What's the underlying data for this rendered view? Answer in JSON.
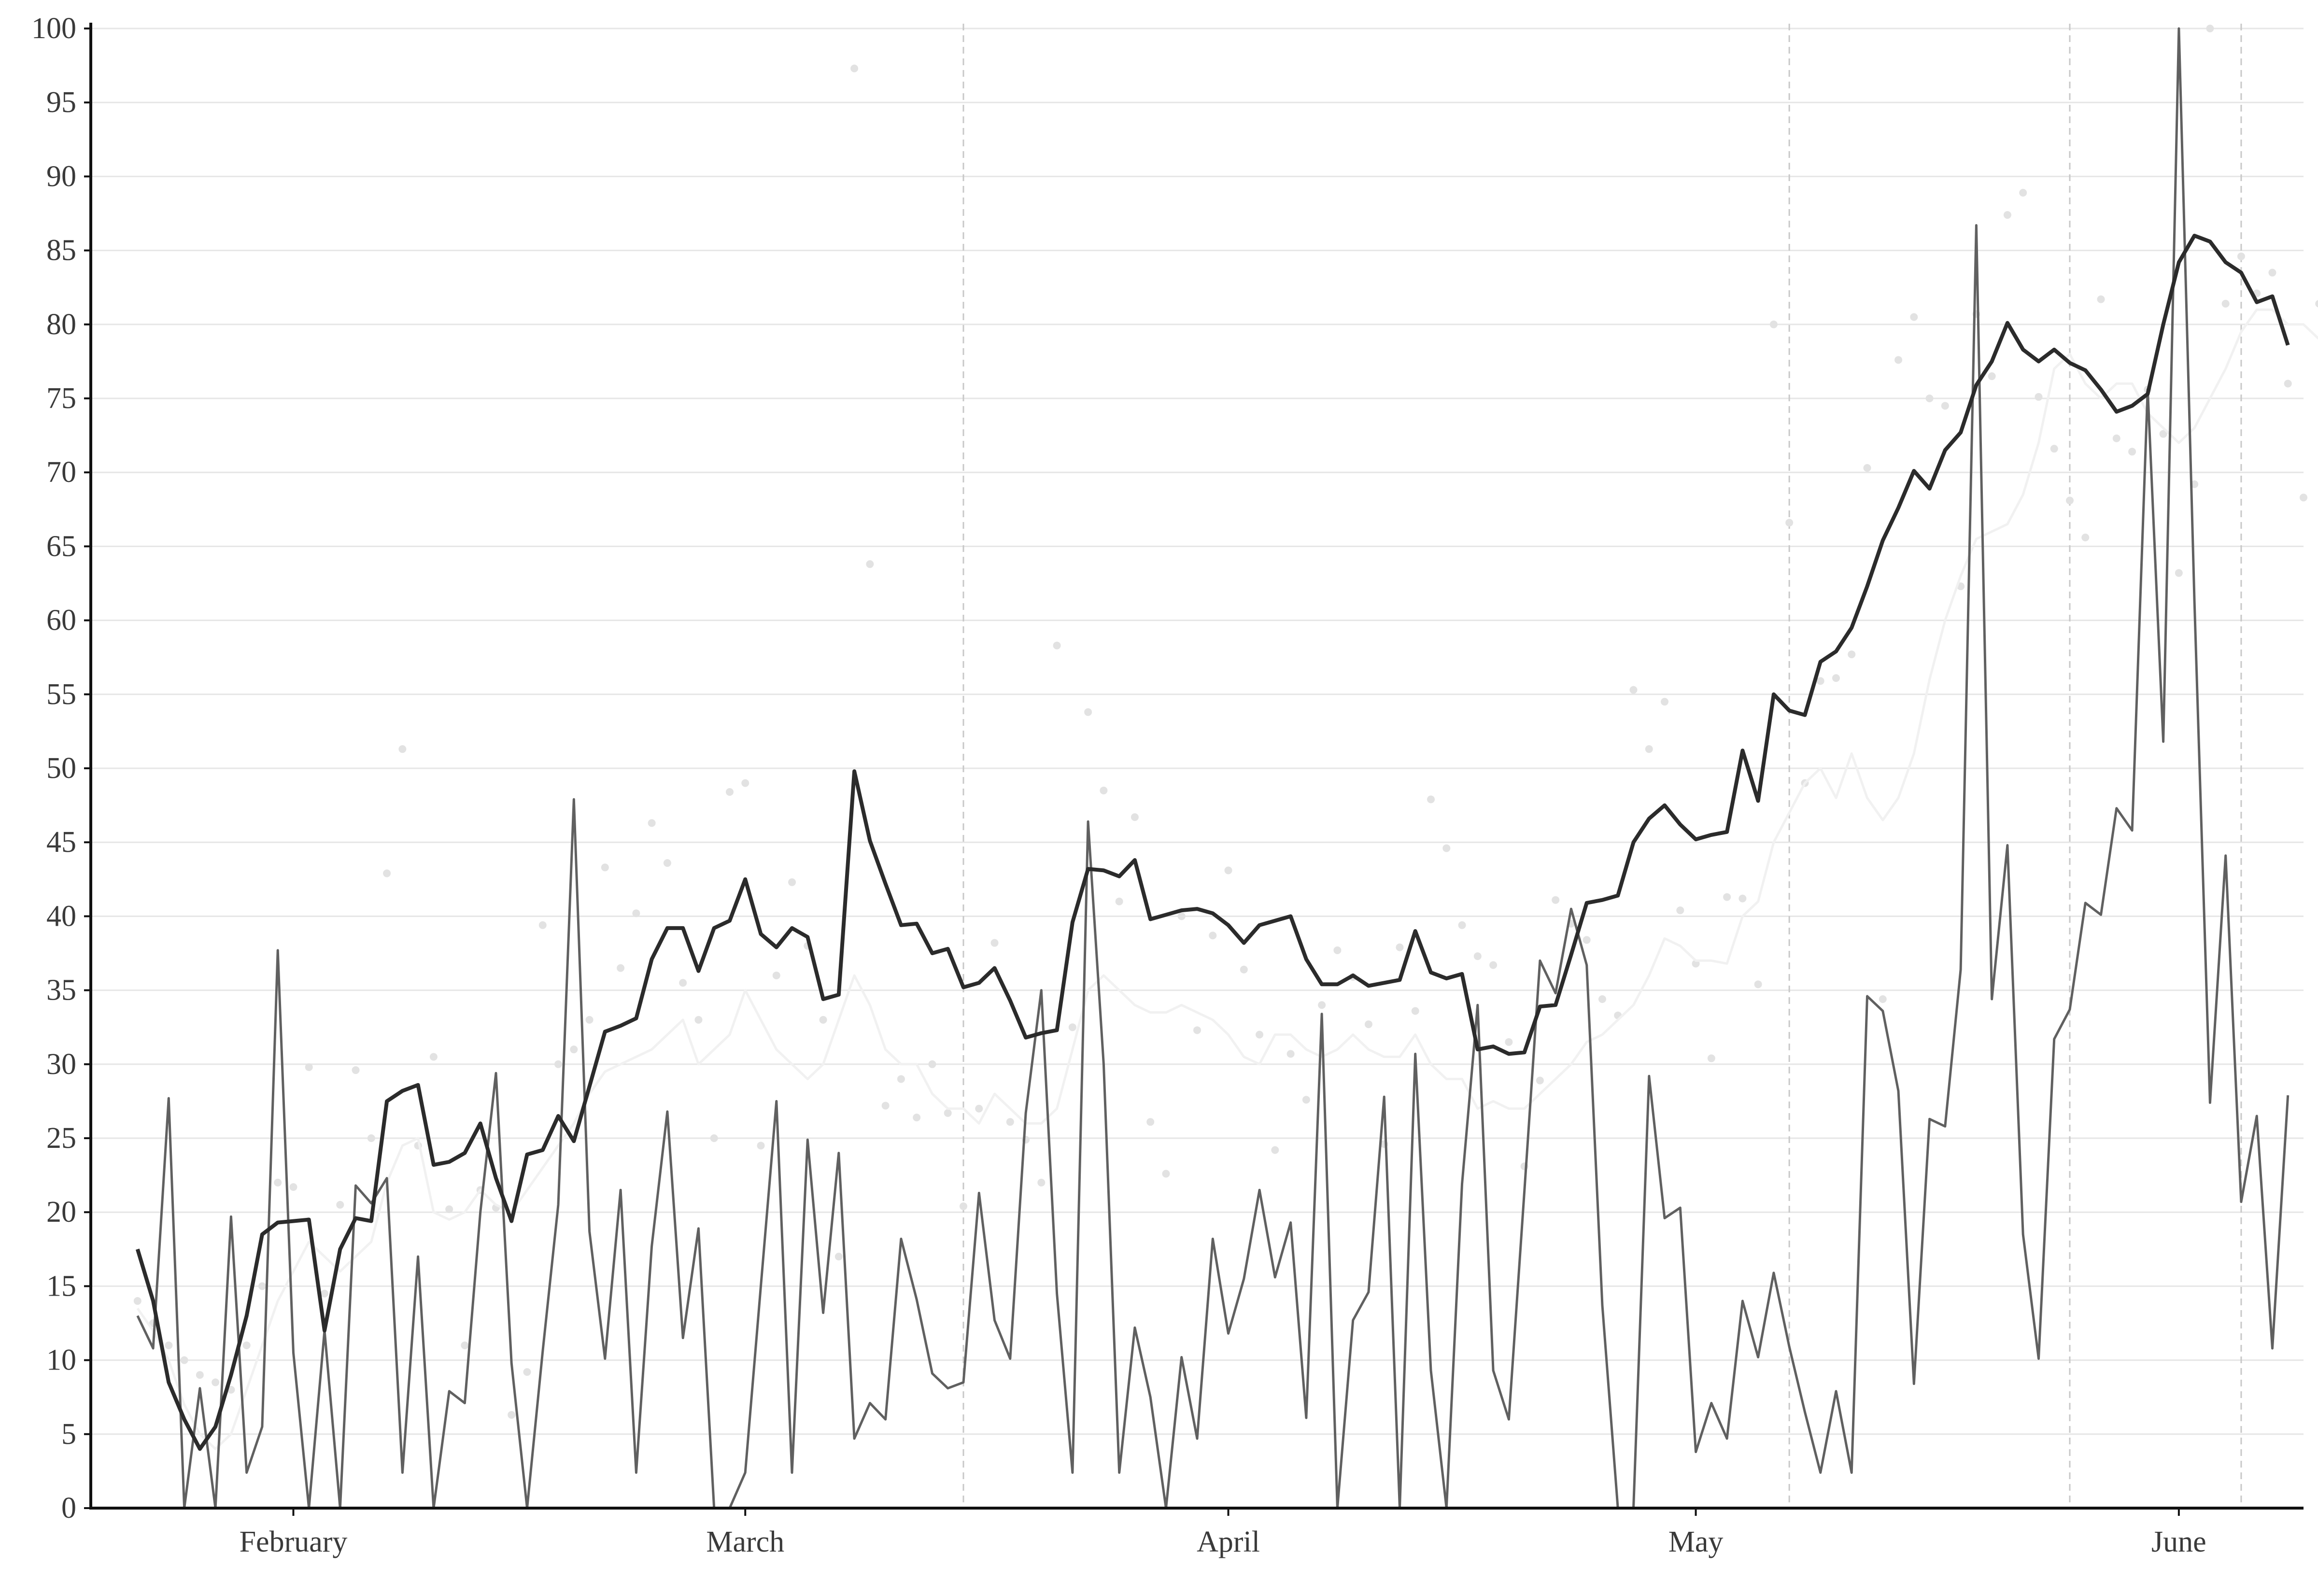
{
  "chart_data": {
    "type": "line",
    "title": "",
    "xlabel": "",
    "ylabel": "",
    "x_start": "2020-01-22",
    "x_tick_dates": [
      "2020-02-01",
      "2020-03-01",
      "2020-04-01",
      "2020-05-01",
      "2020-06-01"
    ],
    "x_tick_labels": [
      "February",
      "March",
      "April",
      "May",
      "June"
    ],
    "xlim": [
      "2020-01-19",
      "2020-06-09"
    ],
    "ylim": [
      0,
      100
    ],
    "y_ticks": [
      0,
      5,
      10,
      15,
      20,
      25,
      30,
      35,
      40,
      45,
      50,
      55,
      60,
      65,
      70,
      75,
      80,
      85,
      90,
      95,
      100
    ],
    "grid": "horizontal",
    "reference_dates": [
      "2020-03-15",
      "2020-05-07",
      "2020-05-25",
      "2020-06-05"
    ],
    "legend": "none",
    "colors": {
      "smoothed": "#2b2b2b",
      "daily": "#606060",
      "points": "#e2e2e2",
      "faint_line": "#f1f1f1"
    },
    "series": [
      {
        "name": "",
        "style": "thick-dark-line",
        "values": [
          17.5,
          14,
          8.5,
          6,
          4,
          5.5,
          9,
          13,
          18.5,
          19.3,
          19.4,
          19.5,
          12,
          17.5,
          19.6,
          19.4,
          27.5,
          28.2,
          28.6,
          23.2,
          23.4,
          24,
          26,
          22.3,
          19.4,
          23.9,
          24.2,
          26.5,
          24.8,
          28.5,
          32.2,
          32.6,
          33.1,
          37.1,
          39.2,
          39.2,
          36.3,
          39.2,
          39.7,
          42.5,
          38.8,
          37.9,
          39.2,
          38.6,
          34.4,
          34.7,
          49.8,
          45.1,
          42.2,
          39.4,
          39.5,
          37.5,
          37.8,
          35.2,
          35.5,
          36.5,
          34.3,
          31.8,
          32.1,
          32.3,
          39.6,
          43.2,
          43.1,
          42.7,
          43.8,
          39.8,
          40.1,
          40.4,
          40.5,
          40.2,
          39.4,
          38.2,
          39.4,
          39.7,
          40,
          37.1,
          35.4,
          35.4,
          36,
          35.3,
          35.5,
          35.7,
          39,
          36.2,
          35.8,
          36.1,
          31,
          31.2,
          30.7,
          30.8,
          33.9,
          34,
          37.4,
          40.9,
          41.1,
          41.4,
          45,
          46.6,
          47.5,
          46.2,
          45.2,
          45.5,
          45.7,
          51.2,
          47.8,
          55,
          53.9,
          53.6,
          57.2,
          57.9,
          59.5,
          62.3,
          65.4,
          67.6,
          70.1,
          68.9,
          71.5,
          72.7,
          75.9,
          77.5,
          80.1,
          78.3,
          77.5,
          78.3,
          77.4,
          76.9,
          75.6,
          74.1,
          74.5,
          75.3,
          80,
          84.2,
          86,
          85.6,
          84.2,
          83.5,
          81.5,
          81.9,
          78.6
        ]
      },
      {
        "name": "",
        "style": "thin-gray-line",
        "values": [
          13,
          10.8,
          27.7,
          0,
          8.1,
          0,
          19.7,
          2.4,
          5.5,
          37.7,
          10.5,
          0,
          12,
          0,
          21.8,
          20.6,
          22.3,
          2.4,
          17,
          0,
          7.9,
          7.1,
          20,
          29.4,
          9.8,
          0,
          10.6,
          20.5,
          47.9,
          18.7,
          10.1,
          21.5,
          2.4,
          17.7,
          26.8,
          11.5,
          18.9,
          0,
          0,
          2.4,
          15,
          27.5,
          2.4,
          24.9,
          13.2,
          24,
          4.7,
          7.1,
          6,
          18.2,
          14.1,
          9.1,
          8.1,
          8.5,
          21.3,
          12.7,
          10.1,
          26.7,
          35,
          14.5,
          2.4,
          46.4,
          30,
          2.4,
          12.2,
          7.5,
          0,
          10.2,
          4.7,
          18.2,
          11.8,
          15.5,
          21.5,
          15.6,
          19.3,
          6.1,
          33.4,
          0,
          12.7,
          14.6,
          27.8,
          0,
          30.7,
          9.3,
          0,
          21.9,
          34,
          9.3,
          6,
          21.4,
          37,
          34.8,
          40.5,
          36.7,
          13.7,
          0,
          0,
          29.2,
          19.6,
          20.3,
          3.8,
          7.1,
          4.7,
          14,
          10.2,
          15.9,
          10.9,
          6.5,
          2.4,
          7.9,
          2.4,
          34.6,
          33.6,
          28.2,
          8.4,
          26.3,
          25.8,
          36.4,
          86.7,
          34.4,
          44.8,
          18.5,
          10.1,
          31.7,
          33.7,
          40.9,
          40.1,
          47.3,
          45.8,
          75.6,
          51.8,
          100,
          61.3,
          27.4,
          44.1,
          20.7,
          26.5,
          10.8,
          27.9
        ]
      },
      {
        "name": "",
        "style": "faint-light-line",
        "values": [
          13.5,
          12,
          10,
          7,
          5,
          4,
          5,
          8,
          11,
          14,
          16,
          18,
          17,
          16,
          17,
          18,
          22,
          24.5,
          25,
          20,
          19.5,
          20,
          21.5,
          20.5,
          20,
          21.5,
          23,
          24.5,
          26,
          28,
          29.5,
          30,
          30.5,
          31,
          32,
          33,
          30,
          31,
          32,
          35,
          33,
          31,
          30,
          29,
          30,
          33,
          36,
          34,
          31,
          30,
          30,
          28,
          27,
          27,
          26,
          28,
          27,
          26,
          26,
          27,
          31,
          35,
          36,
          35,
          34,
          33.5,
          33.5,
          34,
          33.5,
          33,
          32,
          30.5,
          30,
          32,
          32,
          31,
          30.5,
          31,
          32,
          31,
          30.5,
          30.5,
          32,
          30,
          29,
          29,
          27,
          27.5,
          27,
          27,
          28,
          29,
          30,
          31.5,
          32,
          33,
          34,
          36,
          38.5,
          38,
          37,
          37,
          36.8,
          40,
          41,
          45,
          47,
          49,
          50,
          48,
          51,
          48,
          46.5,
          48,
          51,
          56,
          60,
          63,
          65.5,
          66,
          66.5,
          68.5,
          72,
          77,
          78,
          76,
          75,
          76,
          76,
          74,
          73,
          72,
          73,
          75,
          77,
          79.5,
          81,
          81,
          80,
          80,
          79,
          78,
          77
        ]
      },
      {
        "name": "",
        "style": "light-points",
        "values": [
          14,
          12.5,
          11,
          10,
          9,
          8.5,
          8,
          11,
          15,
          22,
          21.7,
          29.8,
          14.5,
          20.5,
          29.6,
          25,
          42.9,
          51.3,
          24.5,
          30.5,
          20.2,
          11,
          21.5,
          20.3,
          6.3,
          9.2,
          39.4,
          30,
          31,
          33,
          43.3,
          36.5,
          40.2,
          46.3,
          43.6,
          35.5,
          33,
          25,
          48.4,
          49,
          24.5,
          36,
          42.3,
          38,
          33,
          17,
          97.3,
          63.8,
          27.2,
          29,
          26.4,
          30,
          26.7,
          20.4,
          27,
          38.2,
          26.1,
          24.9,
          22,
          58.3,
          32.5,
          53.8,
          48.5,
          41,
          46.7,
          26.1,
          22.6,
          40,
          32.3,
          38.7,
          43.1,
          36.4,
          32,
          24.2,
          30.7,
          27.6,
          34,
          37.7,
          35.9,
          32.7,
          24.6,
          37.9,
          33.6,
          47.9,
          44.6,
          39.4,
          37.3,
          36.7,
          31.5,
          23.1,
          28.9,
          41.1,
          39.5,
          38.4,
          34.4,
          33.3,
          55.3,
          51.3,
          54.5,
          40.4,
          36.8,
          30.4,
          41.3,
          41.2,
          35.4,
          80,
          66.6,
          49,
          55.9,
          56.1,
          57.7,
          70.3,
          34.4,
          77.6,
          80.5,
          75,
          74.5,
          62.3,
          80.7,
          76.5,
          87.4,
          88.9,
          75.1,
          71.6,
          68.1,
          65.6,
          81.7,
          72.3,
          71.4,
          75.6,
          72.6,
          63.2,
          69.2,
          100,
          81.4,
          84.6,
          82.1,
          83.5,
          76,
          68.3,
          81.4,
          64.3,
          62.1,
          77,
          67
        ]
      }
    ]
  }
}
